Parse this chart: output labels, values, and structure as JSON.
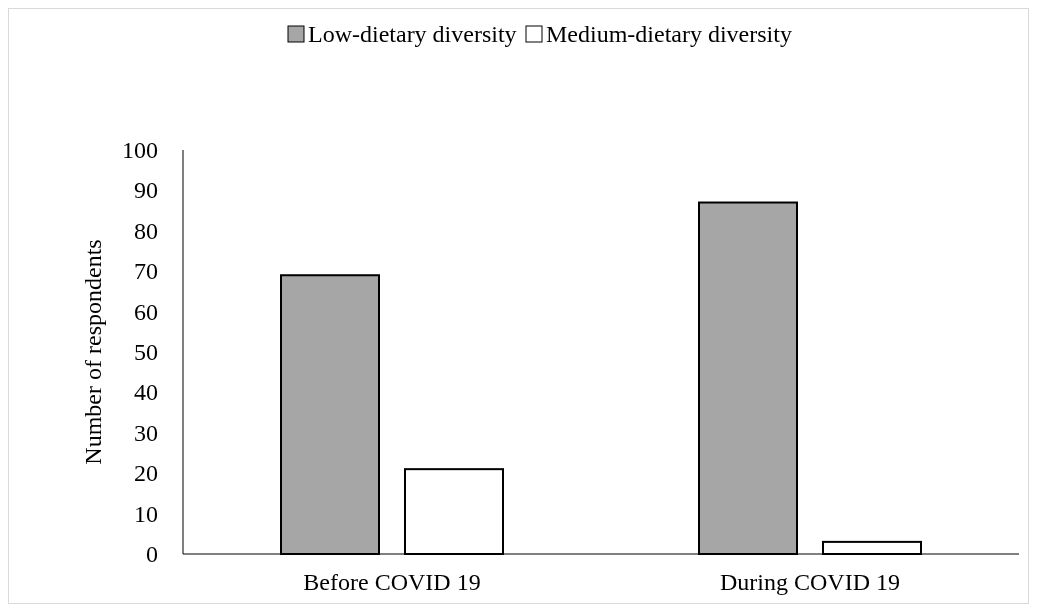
{
  "chart_data": {
    "type": "bar",
    "ylabel": "Number of respondents",
    "categories": [
      "Before COVID 19",
      "During COVID 19"
    ],
    "series": [
      {
        "name": "Low-dietary diversity",
        "color": "#a6a6a6",
        "values": [
          69,
          87
        ]
      },
      {
        "name": "Medium-dietary diversity",
        "color": "#ffffff",
        "values": [
          21,
          3
        ]
      }
    ],
    "ylim": [
      0,
      100
    ],
    "yticks": [
      0,
      10,
      20,
      30,
      40,
      50,
      60,
      70,
      80,
      90,
      100
    ],
    "legend": "top"
  }
}
